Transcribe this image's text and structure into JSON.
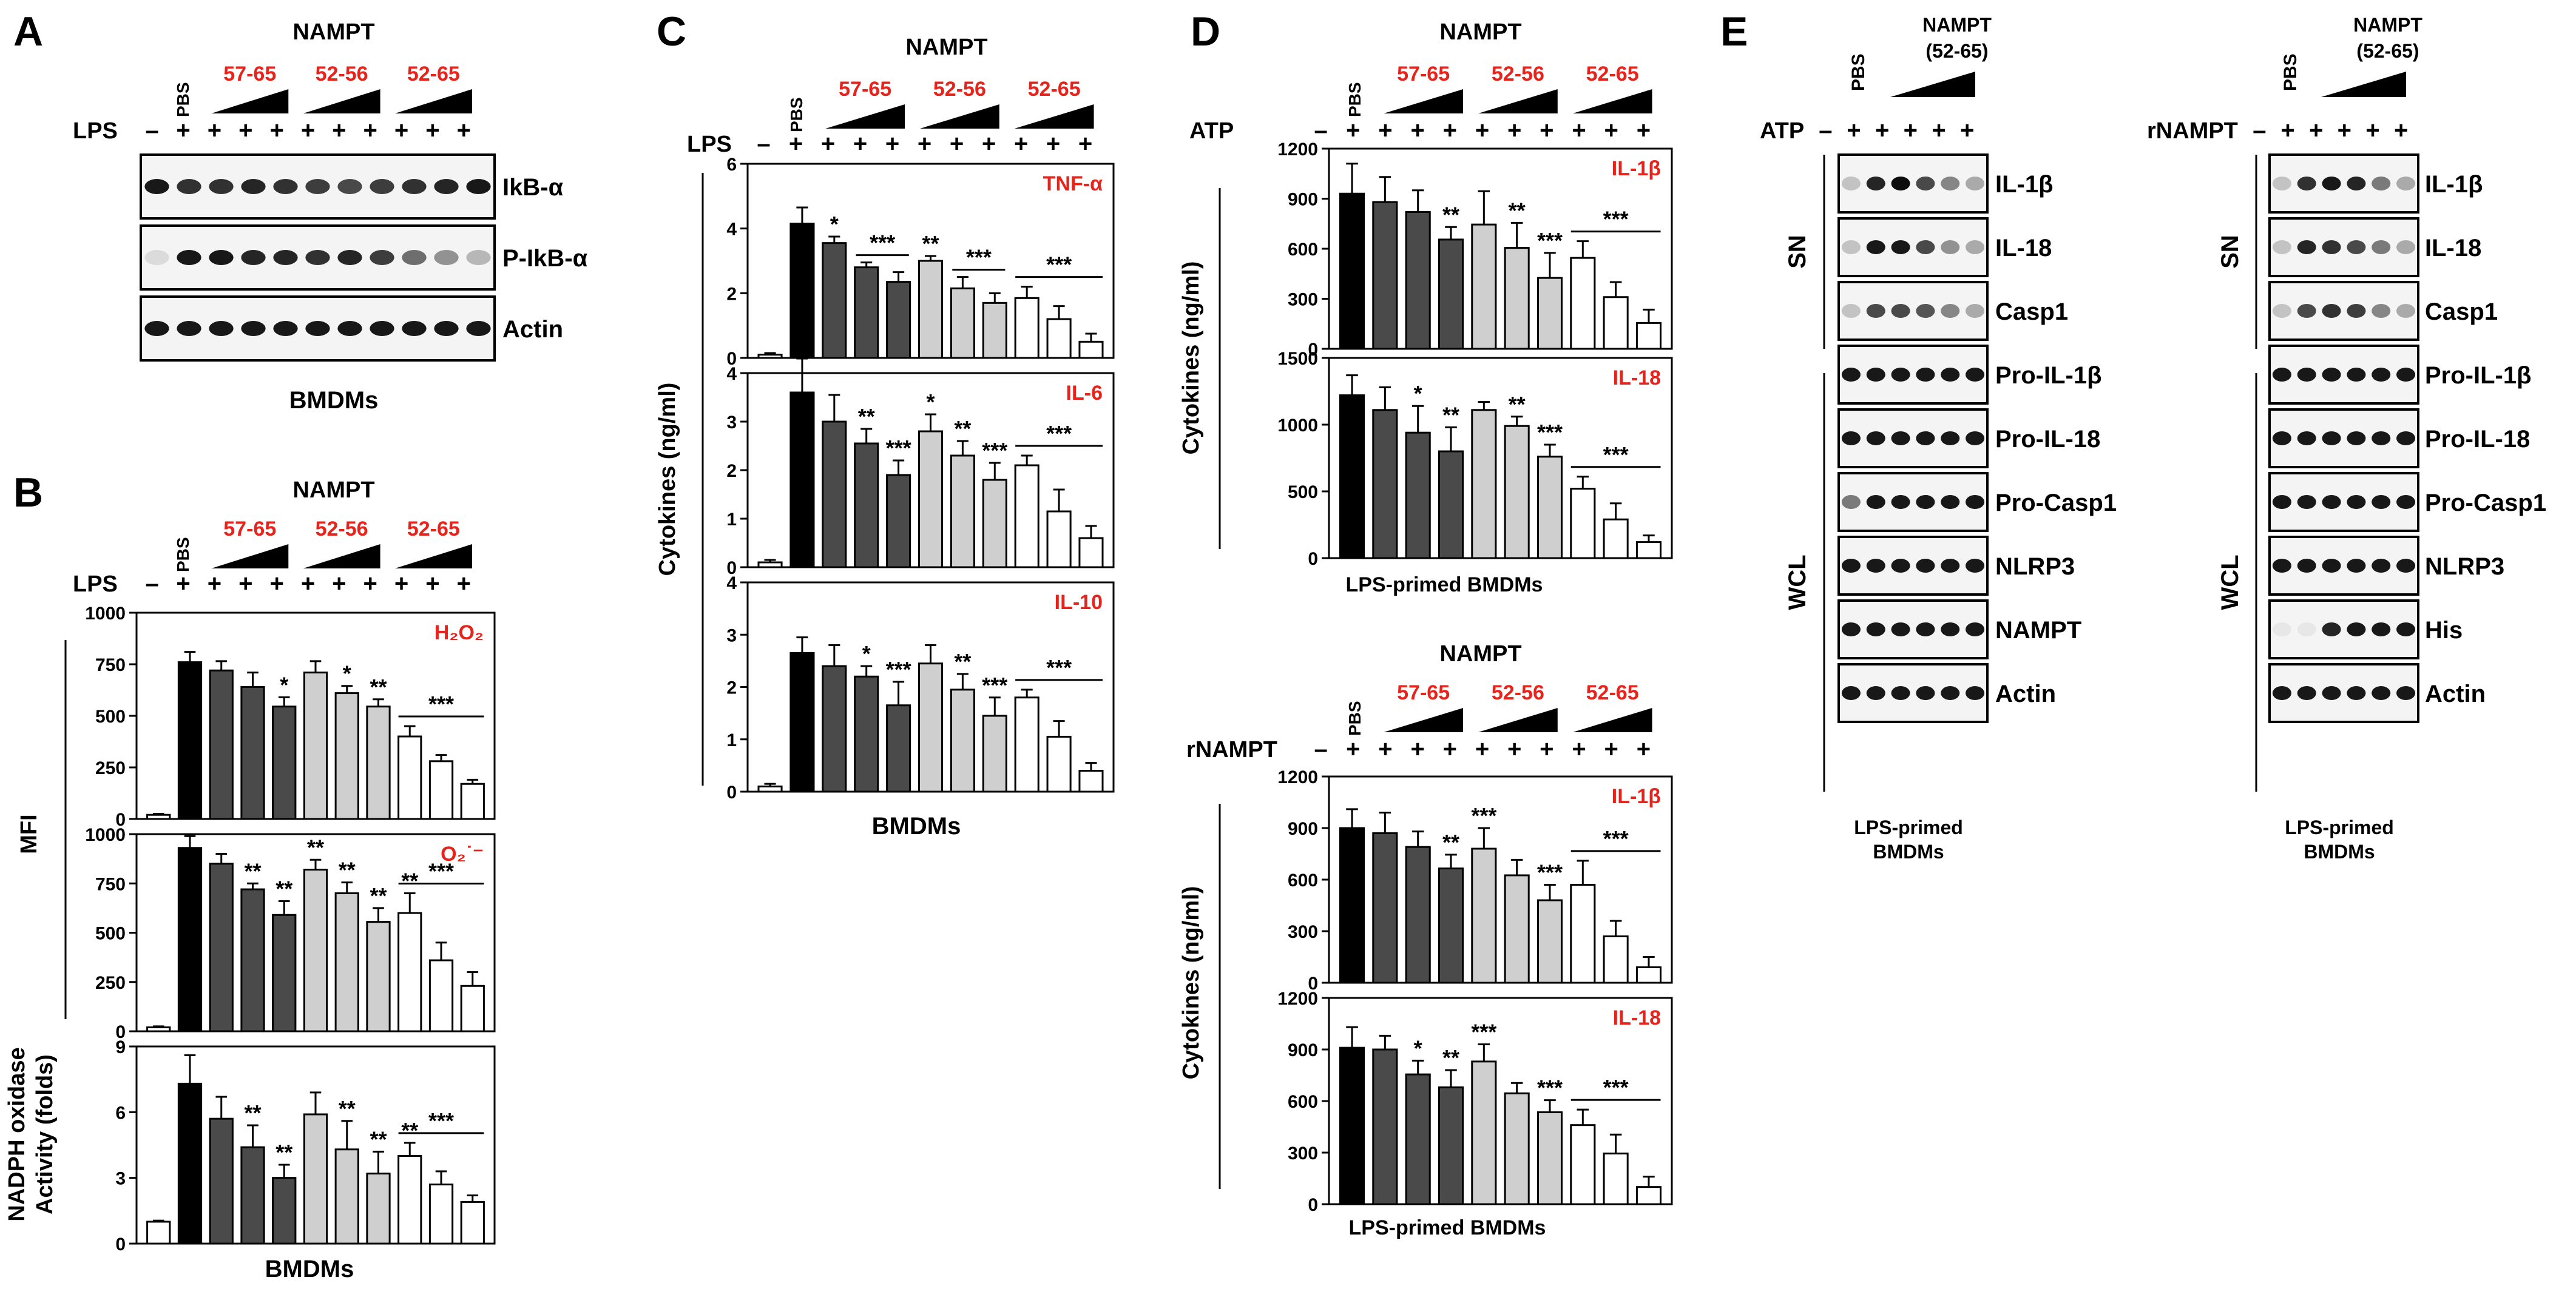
{
  "colors": {
    "red": "#e8231c",
    "bar_pbs": "#ffffff",
    "bar_lps": "#000000",
    "bar_g1": "#4a4a4a",
    "bar_g2": "#cfcfcf",
    "bar_g3": "#ffffff",
    "blot_bg": "#f4f4f4"
  },
  "groups": [
    "57-65",
    "52-56",
    "52-65"
  ],
  "common": {
    "pbs": "PBS",
    "nampt": "NAMPT",
    "lps": "LPS",
    "atp": "ATP",
    "rnampt": "rNAMPT",
    "bmdms": "BMDMs",
    "lps_primed": "LPS-primed BMDMs",
    "lps_primed_l1": "LPS-primed",
    "lps_primed_l2": "BMDMs",
    "nampt_52_65": "(52-65)",
    "sn": "SN",
    "wcl": "WCL"
  },
  "panels": {
    "A": {
      "letter": "A",
      "signs": [
        "–",
        "+",
        "+",
        "+",
        "+",
        "+",
        "+",
        "+",
        "+",
        "+",
        "+"
      ],
      "blots": [
        "IkB-α",
        "P-IkB-α",
        "Actin"
      ],
      "band_intensity": [
        [
          0.9,
          0.8,
          0.8,
          0.85,
          0.8,
          0.75,
          0.7,
          0.75,
          0.8,
          0.85,
          0.9
        ],
        [
          0.1,
          0.9,
          0.9,
          0.85,
          0.85,
          0.8,
          0.85,
          0.75,
          0.55,
          0.4,
          0.25
        ],
        [
          0.9,
          0.9,
          0.9,
          0.9,
          0.9,
          0.9,
          0.9,
          0.9,
          0.9,
          0.9,
          0.9
        ]
      ]
    },
    "B": {
      "letter": "B",
      "signs": [
        "–",
        "+",
        "+",
        "+",
        "+",
        "+",
        "+",
        "+",
        "+",
        "+",
        "+"
      ],
      "ylabel_top": "MFI",
      "ylabel_bottom_l1": "NADPH oxidase",
      "ylabel_bottom_l2": "Activity (folds)"
    },
    "C": {
      "letter": "C",
      "signs": [
        "–",
        "+",
        "+",
        "+",
        "+",
        "+",
        "+",
        "+",
        "+",
        "+",
        "+"
      ],
      "ylabel": "Cytokines (ng/ml)"
    },
    "D": {
      "letter": "D",
      "signs": [
        "–",
        "+",
        "+",
        "+",
        "+",
        "+",
        "+",
        "+",
        "+",
        "+",
        "+"
      ],
      "ylabel": "Cytokines (ng/ml)"
    },
    "E": {
      "letter": "E",
      "left_blots": [
        "IL-1β",
        "IL-18",
        "Casp1",
        "Pro-IL-1β",
        "Pro-IL-18",
        "Pro-Casp1",
        "NLRP3",
        "NAMPT",
        "Actin"
      ],
      "right_blots": [
        "IL-1β",
        "IL-18",
        "Casp1",
        "Pro-IL-1β",
        "Pro-IL-18",
        "Pro-Casp1",
        "NLRP3",
        "His",
        "Actin"
      ],
      "signs": [
        "–",
        "+",
        "+",
        "+",
        "+",
        "+"
      ],
      "band_intensity_left": [
        [
          0.2,
          0.85,
          0.95,
          0.7,
          0.45,
          0.3
        ],
        [
          0.2,
          0.9,
          0.9,
          0.7,
          0.4,
          0.3
        ],
        [
          0.2,
          0.7,
          0.7,
          0.65,
          0.45,
          0.3
        ],
        [
          0.9,
          0.9,
          0.9,
          0.9,
          0.9,
          0.9
        ],
        [
          0.9,
          0.9,
          0.9,
          0.9,
          0.9,
          0.9
        ],
        [
          0.5,
          0.9,
          0.9,
          0.9,
          0.9,
          0.9
        ],
        [
          0.9,
          0.9,
          0.9,
          0.9,
          0.9,
          0.9
        ],
        [
          0.9,
          0.9,
          0.9,
          0.9,
          0.9,
          0.9
        ],
        [
          0.9,
          0.9,
          0.9,
          0.9,
          0.9,
          0.9
        ]
      ],
      "band_intensity_right": [
        [
          0.2,
          0.8,
          0.9,
          0.85,
          0.5,
          0.3
        ],
        [
          0.2,
          0.85,
          0.8,
          0.7,
          0.5,
          0.3
        ],
        [
          0.2,
          0.7,
          0.8,
          0.75,
          0.45,
          0.3
        ],
        [
          0.9,
          0.9,
          0.9,
          0.9,
          0.9,
          0.9
        ],
        [
          0.9,
          0.9,
          0.9,
          0.9,
          0.9,
          0.9
        ],
        [
          0.9,
          0.9,
          0.9,
          0.9,
          0.9,
          0.9
        ],
        [
          0.9,
          0.9,
          0.9,
          0.9,
          0.9,
          0.9
        ],
        [
          0.05,
          0.05,
          0.85,
          0.9,
          0.9,
          0.9
        ],
        [
          0.9,
          0.9,
          0.9,
          0.9,
          0.9,
          0.9
        ]
      ]
    }
  },
  "chart_data": [
    {
      "id": "B1",
      "type": "bar",
      "title": "H₂O₂",
      "ylim": [
        0,
        1000
      ],
      "yticks": [
        0,
        250,
        500,
        750,
        1000
      ],
      "values": [
        20,
        760,
        720,
        640,
        545,
        710,
        610,
        545,
        400,
        280,
        170
      ],
      "errors": [
        5,
        50,
        45,
        70,
        45,
        55,
        35,
        35,
        50,
        30,
        20
      ],
      "stars": [
        "",
        "",
        "",
        "",
        "*",
        "",
        "*",
        "**",
        "",
        "",
        ""
      ],
      "group_star": "***"
    },
    {
      "id": "B2",
      "type": "bar",
      "title": "O₂˙⁻",
      "ylim": [
        0,
        1000
      ],
      "yticks": [
        0,
        250,
        500,
        750,
        1000
      ],
      "values": [
        20,
        930,
        850,
        720,
        590,
        820,
        700,
        555,
        600,
        360,
        230
      ],
      "errors": [
        5,
        60,
        50,
        30,
        70,
        50,
        55,
        70,
        100,
        90,
        70
      ],
      "stars": [
        "",
        "",
        "",
        "**",
        "**",
        "**",
        "**",
        "**",
        "**",
        "",
        ""
      ],
      "group_star": "***"
    },
    {
      "id": "B3",
      "type": "bar",
      "title": "",
      "ylim": [
        0,
        9
      ],
      "yticks": [
        0,
        3,
        6,
        9
      ],
      "values": [
        1,
        7.3,
        5.7,
        4.4,
        3.0,
        5.9,
        4.3,
        3.2,
        4.0,
        2.7,
        1.9
      ],
      "errors": [
        0.05,
        1.3,
        1.0,
        1.0,
        0.6,
        1.0,
        1.3,
        1.0,
        0.6,
        0.6,
        0.3
      ],
      "stars": [
        "",
        "",
        "",
        "**",
        "**",
        "",
        "**",
        "**",
        "**",
        "",
        ""
      ],
      "group_star": "***"
    },
    {
      "id": "C1",
      "type": "bar",
      "title": "TNF-α",
      "ylim": [
        0,
        6
      ],
      "yticks": [
        0,
        2,
        4,
        6
      ],
      "values": [
        0.1,
        4.15,
        3.55,
        2.8,
        2.35,
        3.0,
        2.15,
        1.7,
        1.85,
        1.2,
        0.5
      ],
      "errors": [
        0.05,
        0.5,
        0.2,
        0.15,
        0.3,
        0.15,
        0.35,
        0.3,
        0.35,
        0.4,
        0.25
      ],
      "stars": [
        "",
        "",
        "*",
        "",
        "",
        "**",
        "",
        "",
        "",
        "",
        ""
      ],
      "line_stars": [
        {
          "from": 3,
          "to": 4,
          "label": "***"
        },
        {
          "from": 6,
          "to": 7,
          "label": "***"
        }
      ],
      "group_star": "***"
    },
    {
      "id": "C2",
      "type": "bar",
      "title": "IL-6",
      "ylim": [
        0,
        4
      ],
      "yticks": [
        0,
        1,
        2,
        3,
        4
      ],
      "values": [
        0.1,
        3.6,
        3.0,
        2.55,
        1.9,
        2.8,
        2.3,
        1.8,
        2.1,
        1.15,
        0.6
      ],
      "errors": [
        0.05,
        0.7,
        0.55,
        0.3,
        0.3,
        0.35,
        0.3,
        0.35,
        0.2,
        0.45,
        0.25
      ],
      "stars": [
        "",
        "",
        "",
        "**",
        "***",
        "*",
        "**",
        "***",
        "",
        "",
        ""
      ],
      "group_star": "***"
    },
    {
      "id": "C3",
      "type": "bar",
      "title": "IL-10",
      "ylim": [
        0,
        4
      ],
      "yticks": [
        0,
        1,
        2,
        3,
        4
      ],
      "values": [
        0.1,
        2.65,
        2.4,
        2.2,
        1.65,
        2.45,
        1.95,
        1.45,
        1.8,
        1.05,
        0.4
      ],
      "errors": [
        0.05,
        0.3,
        0.4,
        0.2,
        0.45,
        0.35,
        0.3,
        0.35,
        0.15,
        0.3,
        0.15
      ],
      "stars": [
        "",
        "",
        "",
        "*",
        "***",
        "",
        "**",
        "***",
        "",
        "",
        ""
      ],
      "group_star": "***"
    },
    {
      "id": "D1",
      "type": "bar",
      "title": "IL-1β",
      "ylim": [
        0,
        1200
      ],
      "yticks": [
        0,
        300,
        600,
        900,
        1200
      ],
      "values": [
        930,
        880,
        820,
        655,
        745,
        605,
        425,
        545,
        310,
        155
      ],
      "errors": [
        180,
        150,
        130,
        75,
        200,
        150,
        150,
        100,
        90,
        80
      ],
      "stars": [
        "",
        "",
        "",
        "**",
        "",
        "**",
        "***",
        "",
        "",
        ""
      ],
      "group_star": "***"
    },
    {
      "id": "D2",
      "type": "bar",
      "title": "IL-18",
      "ylim": [
        0,
        1500
      ],
      "yticks": [
        0,
        500,
        1000,
        1500
      ],
      "values": [
        1220,
        1110,
        940,
        800,
        1110,
        990,
        760,
        520,
        290,
        120
      ],
      "errors": [
        150,
        170,
        200,
        180,
        60,
        70,
        90,
        90,
        120,
        50
      ],
      "stars": [
        "",
        "",
        "*",
        "**",
        "",
        "**",
        "***",
        "",
        "",
        ""
      ],
      "group_star": "***"
    },
    {
      "id": "D3",
      "type": "bar",
      "title": "IL-1β",
      "ylim": [
        0,
        1200
      ],
      "yticks": [
        0,
        300,
        600,
        900,
        1200
      ],
      "values": [
        900,
        870,
        790,
        665,
        780,
        625,
        480,
        570,
        270,
        90
      ],
      "errors": [
        110,
        120,
        90,
        80,
        120,
        90,
        90,
        140,
        90,
        60
      ],
      "stars": [
        "",
        "",
        "",
        "**",
        "***",
        "",
        "***",
        "",
        "",
        ""
      ],
      "group_star": "***"
    },
    {
      "id": "D4",
      "type": "bar",
      "title": "IL-18",
      "ylim": [
        0,
        1200
      ],
      "yticks": [
        0,
        300,
        600,
        900,
        1200
      ],
      "values": [
        910,
        900,
        755,
        680,
        830,
        645,
        535,
        460,
        295,
        100
      ],
      "errors": [
        120,
        80,
        80,
        100,
        100,
        60,
        70,
        90,
        110,
        60
      ],
      "stars": [
        "",
        "",
        "*",
        "**",
        "***",
        "",
        "***",
        "",
        "",
        ""
      ],
      "group_star": "***"
    }
  ]
}
